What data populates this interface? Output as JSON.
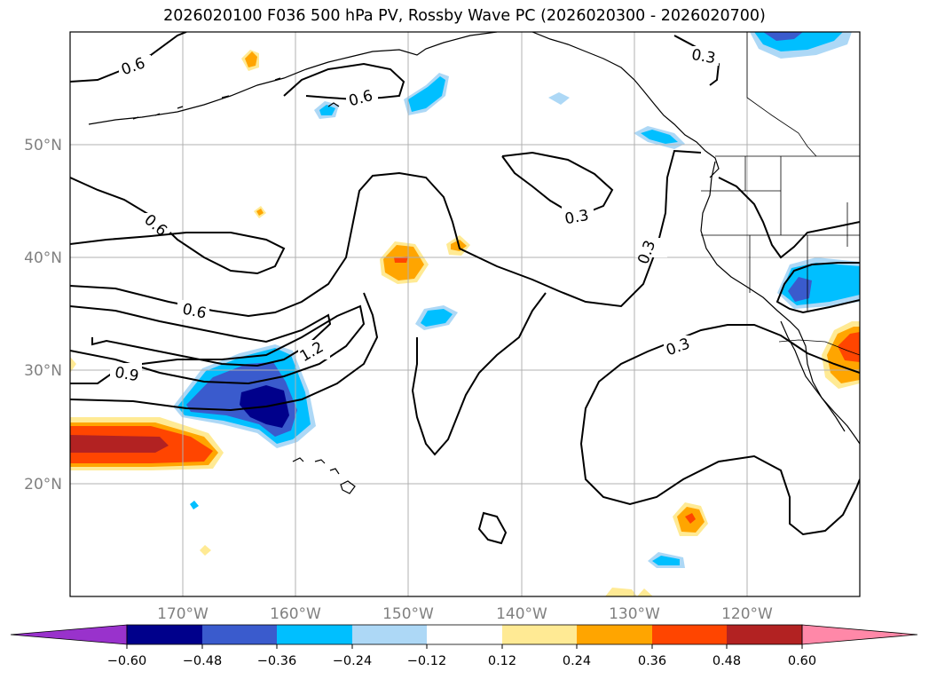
{
  "title": "2026020100 F036 500 hPa PV, Rossby Wave PC (2026020300 - 2026020700)",
  "map": {
    "lat_labels": [
      "50°N",
      "40°N",
      "30°N",
      "20°N"
    ],
    "lon_labels": [
      "170°W",
      "160°W",
      "150°W",
      "140°W",
      "130°W",
      "120°W"
    ],
    "contour_labels": [
      "0.6",
      "0.6",
      "0.6",
      "0.6",
      "0.9",
      "1.2",
      "0.3",
      "0.3",
      "0.3",
      "0.3"
    ]
  },
  "colorbar": {
    "ticks": [
      "−0.60",
      "−0.48",
      "−0.36",
      "−0.24",
      "−0.12",
      "0.12",
      "0.24",
      "0.36",
      "0.48",
      "0.60"
    ],
    "colors": [
      "#9932cc",
      "#00008b",
      "#3a5bcd",
      "#00bfff",
      "#add8f6",
      "#ffffff",
      "#ffea94",
      "#ffa500",
      "#ff4500",
      "#b22222",
      "#ff88a8"
    ]
  }
}
